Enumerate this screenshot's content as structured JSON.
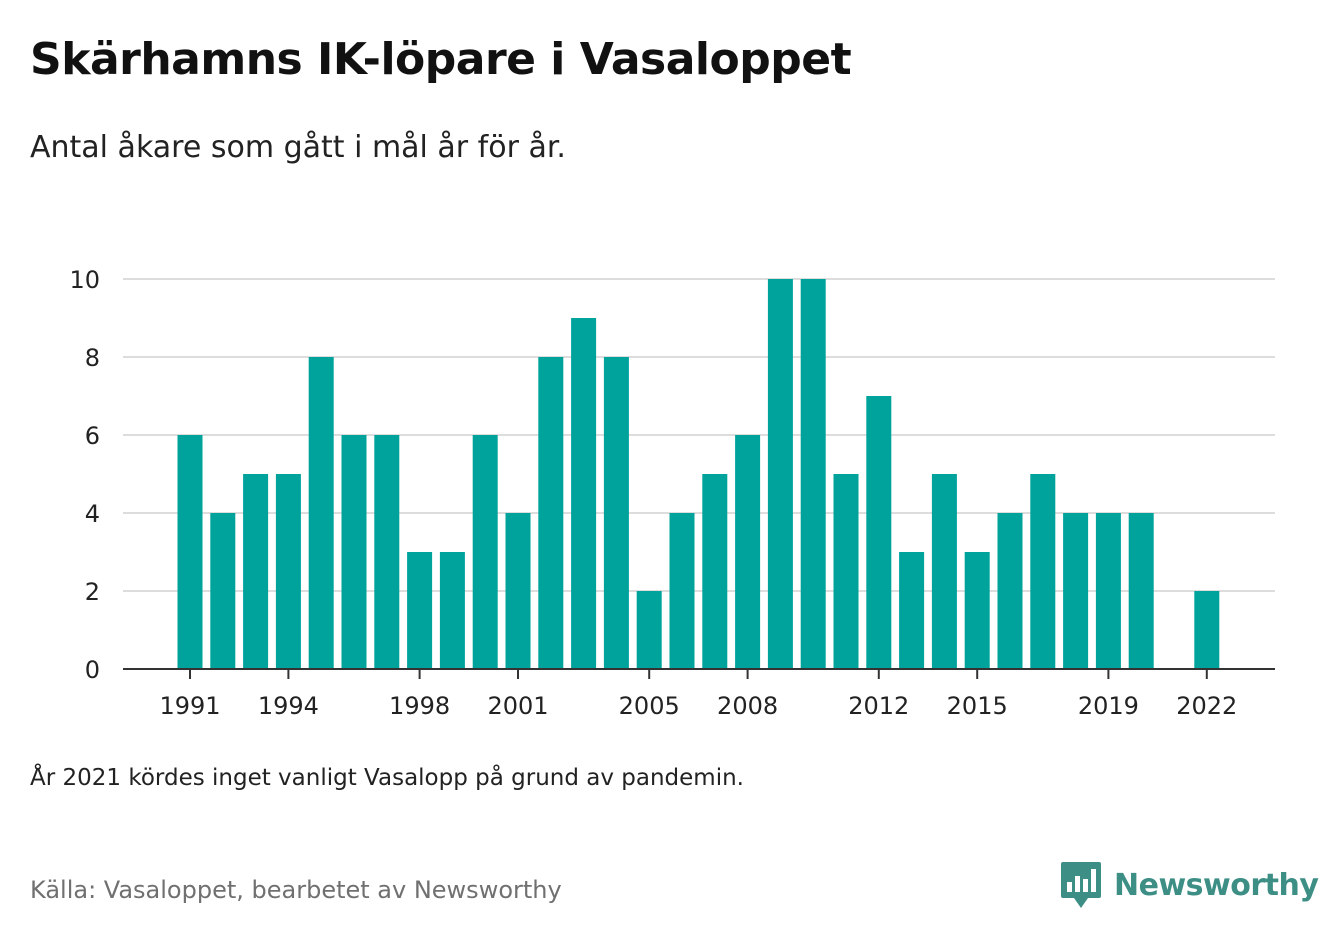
{
  "header": {
    "title": "Skärhamns IK-löpare i Vasaloppet",
    "subtitle": "Antal åkare som gått i mål år för år."
  },
  "footer": {
    "note": "År 2021 kördes inget vanligt Vasalopp på grund av pandemin.",
    "source": "Källa: Vasaloppet, bearbetet av Newsworthy",
    "brand": "Newsworthy",
    "brand_icon": "bar-chart-speech-icon"
  },
  "colors": {
    "bar": "#00a39c",
    "grid": "#dddddd",
    "axis": "#333333",
    "brand": "#3d8f86"
  },
  "chart_data": {
    "type": "bar",
    "categories": [
      "1991",
      "1992",
      "1993",
      "1994",
      "1995",
      "1996",
      "1997",
      "1998",
      "1999",
      "2000",
      "2001",
      "2002",
      "2003",
      "2004",
      "2005",
      "2006",
      "2007",
      "2008",
      "2009",
      "2010",
      "2011",
      "2012",
      "2013",
      "2014",
      "2015",
      "2016",
      "2017",
      "2018",
      "2019",
      "2020",
      "2021",
      "2022"
    ],
    "values": [
      6,
      4,
      5,
      5,
      8,
      6,
      6,
      3,
      3,
      6,
      4,
      8,
      9,
      8,
      2,
      4,
      5,
      6,
      10,
      10,
      5,
      7,
      3,
      5,
      3,
      4,
      5,
      4,
      4,
      4,
      null,
      2
    ],
    "x_tick_labels": [
      "1991",
      "1994",
      "1998",
      "2001",
      "2005",
      "2008",
      "2012",
      "2015",
      "2019",
      "2022"
    ],
    "y_ticks": [
      0,
      2,
      4,
      6,
      8,
      10
    ],
    "ylim": [
      0,
      10
    ],
    "grid": true,
    "legend": "none"
  }
}
